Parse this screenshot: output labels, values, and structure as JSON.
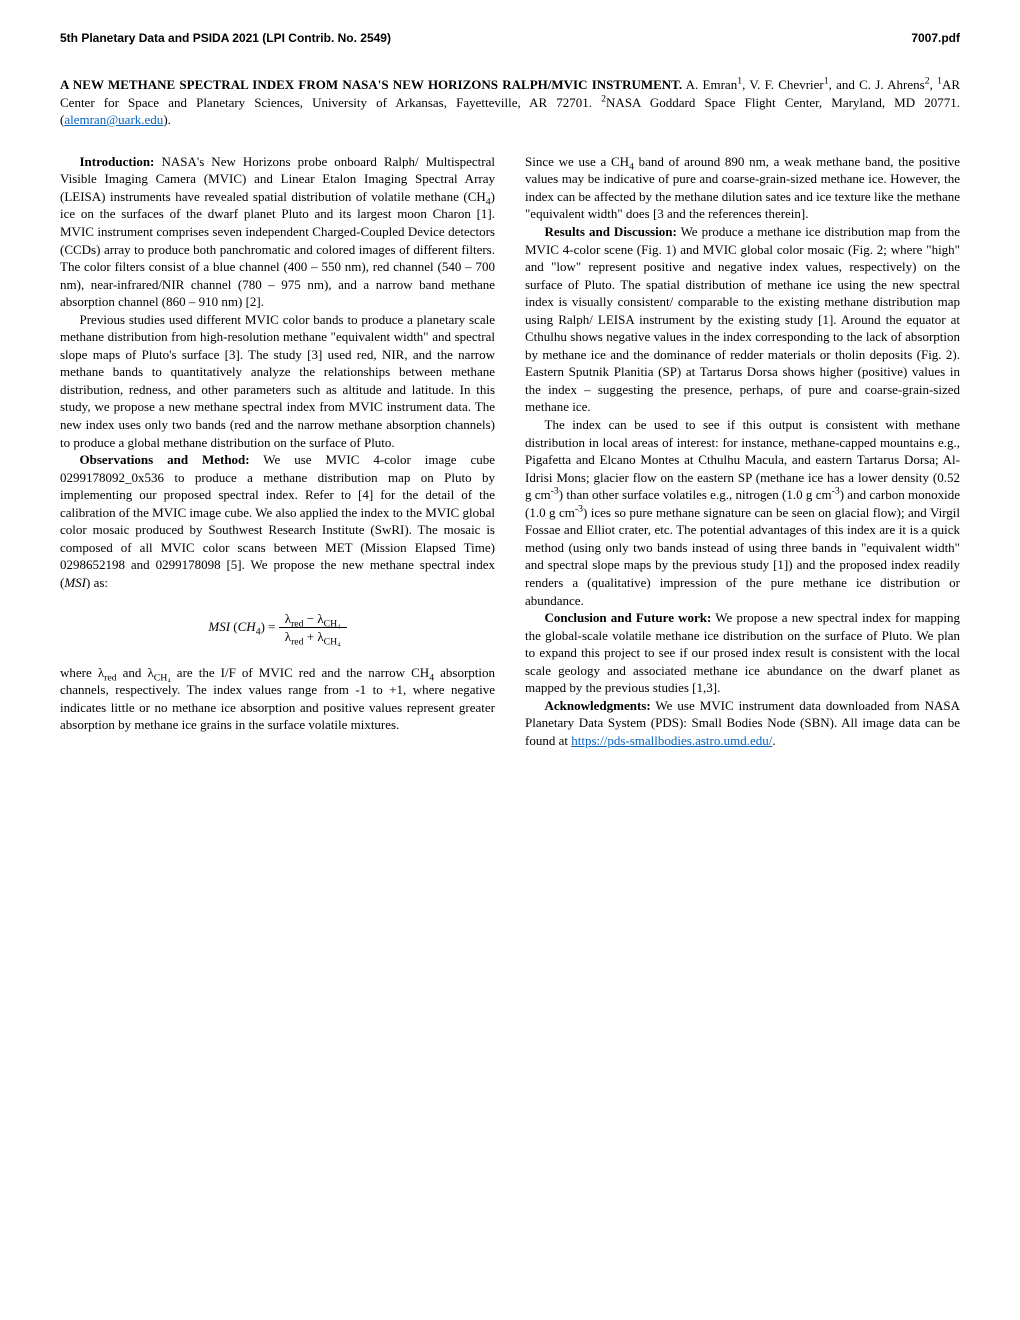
{
  "header": {
    "left": "5th Planetary Data and PSIDA 2021 (LPI Contrib. No. 2549)",
    "right": "7007.pdf"
  },
  "title": {
    "main": "A NEW METHANE SPECTRAL INDEX FROM NASA'S NEW HORIZONS RALPH/MVIC INSTRUMENT.",
    "authors_prefix": "  A. Emran",
    "sup1": "1",
    "authors_mid1": ", V. F. Chevrier",
    "sup2": "1",
    "authors_mid2": ", and C. J. Ahrens",
    "sup3": "2",
    "authors_mid3": ", ",
    "sup4": "1",
    "affil1": "AR Center for Space and Planetary Sciences, University of Arkansas, Fayetteville, AR 72701.  ",
    "sup5": "2",
    "affil2": "NASA Goddard Space Flight Center, Maryland, MD 20771. (",
    "email": "alemran@uark.edu",
    "affil3": ")."
  },
  "left_col": {
    "intro_head": "Introduction:",
    "intro_body": "  NASA's New Horizons probe onboard Ralph/ Multispectral Visible Imaging Camera (MVIC) and Linear Etalon Imaging Spectral Array (LEISA) instruments have revealed spatial distribution of volatile methane (CH",
    "intro_sub1": "4",
    "intro_body2": ") ice on the surfaces of the dwarf planet Pluto and its largest moon Charon [1]. MVIC instrument comprises seven independent Charged-Coupled Device detectors (CCDs) array to produce both panchromatic and colored images of different filters. The color filters consist of a blue channel (400 – 550 nm), red channel (540 – 700 nm), near-infrared/NIR channel (780 – 975 nm), and a narrow band methane absorption channel (860 – 910 nm) [2].",
    "para2": "Previous studies used different MVIC color bands to produce a planetary scale methane distribution from high-resolution methane \"equivalent width\" and spectral slope maps of Pluto's surface [3]. The study [3] used red, NIR, and the narrow methane bands to quantitatively analyze the relationships between methane distribution, redness, and other parameters such as altitude and latitude. In this study, we propose a new methane spectral index from MVIC instrument data. The new index uses only two bands (red and the narrow methane absorption channels) to produce a global methane distribution on the surface of Pluto.",
    "obs_head": "Observations and Method:",
    "obs_body": "  We use MVIC 4-color image cube 0299178092_0x536 to produce a methane distribution map on Pluto by implementing our proposed spectral index. Refer to [4] for the detail of the calibration of the MVIC image cube. We also applied the index to the MVIC global color mosaic produced by Southwest Research Institute (SwRI). The mosaic is composed of all MVIC color scans between MET (Mission Elapsed Time) 0298652198 and 0299178098 [5]. We propose the new methane spectral index (",
    "msi_ital": "MSI",
    "obs_body2": ") as:",
    "formula": {
      "lhs_msi": "MSI",
      "lhs_paren_open": " (",
      "lhs_ch": "CH",
      "lhs_sub4": "4",
      "lhs_paren_close": ")  = ",
      "num_l1": "λ",
      "num_sub_red": "red",
      "num_minus": " −  λ",
      "num_sub_ch4": "CH₄",
      "den_l1": "λ",
      "den_sub_red": "red",
      "den_plus": " +  λ",
      "den_sub_ch4": "CH₄"
    },
    "where_prefix": "where λ",
    "where_sub_red": "red",
    "where_mid1": " and λ",
    "where_sub_ch4": "CH₄",
    "where_mid2": " are the I/F of MVIC red and the narrow CH",
    "where_sub4": "4",
    "where_body": " absorption channels, respectively. The index values range from -1 to +1, where negative indicates little or no methane ice absorption and positive values represent greater absorption by methane ice grains in the surface volatile mixtures. "
  },
  "right_col": {
    "para1a": "Since we use a CH",
    "para1_sub": "4",
    "para1b": " band of around 890 nm, a weak methane band, the positive values may be indicative of pure and coarse-grain-sized methane ice. However, the index can be affected by the methane dilution sates and ice texture like the methane \"equivalent width\" does [3 and the references therein].",
    "results_head": "Results and Discussion:",
    "results_body": " We produce a methane ice distribution map from the MVIC 4-color scene (Fig. 1) and MVIC global color mosaic (Fig. 2; where \"high\" and \"low\" represent positive and negative index values, respectively) on the surface of Pluto. The spatial distribution of methane ice using the new spectral index is visually consistent/ comparable to the existing methane distribution map using Ralph/ LEISA instrument by the existing study [1]. Around the equator at Cthulhu shows negative values in the index corresponding to the lack of absorption by methane ice and the dominance of redder materials or tholin deposits (Fig. 2). Eastern Sputnik Planitia (SP) at Tartarus Dorsa shows higher (positive) values in the index – suggesting the presence, perhaps, of pure and coarse-grain-sized methane ice.",
    "para3a": "The index can be used to see if this output is consistent with methane distribution in local areas of interest: for instance, methane-capped mountains e.g., Pigafetta and Elcano Montes at Cthulhu Macula, and eastern Tartarus Dorsa; Al-Idrisi Mons; glacier flow on the eastern SP (methane ice has a lower density (0.52 g cm",
    "para3_sup1": "-3",
    "para3b": ") than other surface volatiles e.g., nitrogen (1.0 g cm",
    "para3_sup2": "-3",
    "para3c": ") and carbon monoxide (1.0 g cm",
    "para3_sup3": "-3",
    "para3d": ") ices so pure methane signature can be seen on glacial flow); and Virgil Fossae and Elliot crater, etc. The potential advantages of this index are it is a quick method (using only two bands instead of using three bands in \"equivalent width\" and spectral slope maps by the previous study [1]) and the proposed index readily renders a (qualitative) impression of the pure methane ice distribution or abundance.",
    "concl_head": "Conclusion and Future work:",
    "concl_body": " We propose a new spectral index for mapping the global-scale volatile methane ice distribution on the surface of Pluto. We plan to expand this project to see if our prosed index result is consistent with the local scale geology and associated methane ice abundance on the dwarf planet as mapped by the previous studies [1,3].",
    "ack_head": "Acknowledgments:",
    "ack_body": " We use MVIC instrument data downloaded from NASA Planetary Data System (PDS): Small Bodies Node (SBN). All image data can be found at ",
    "ack_link": "https://pds-smallbodies.astro.umd.edu/",
    "ack_dot": "."
  }
}
